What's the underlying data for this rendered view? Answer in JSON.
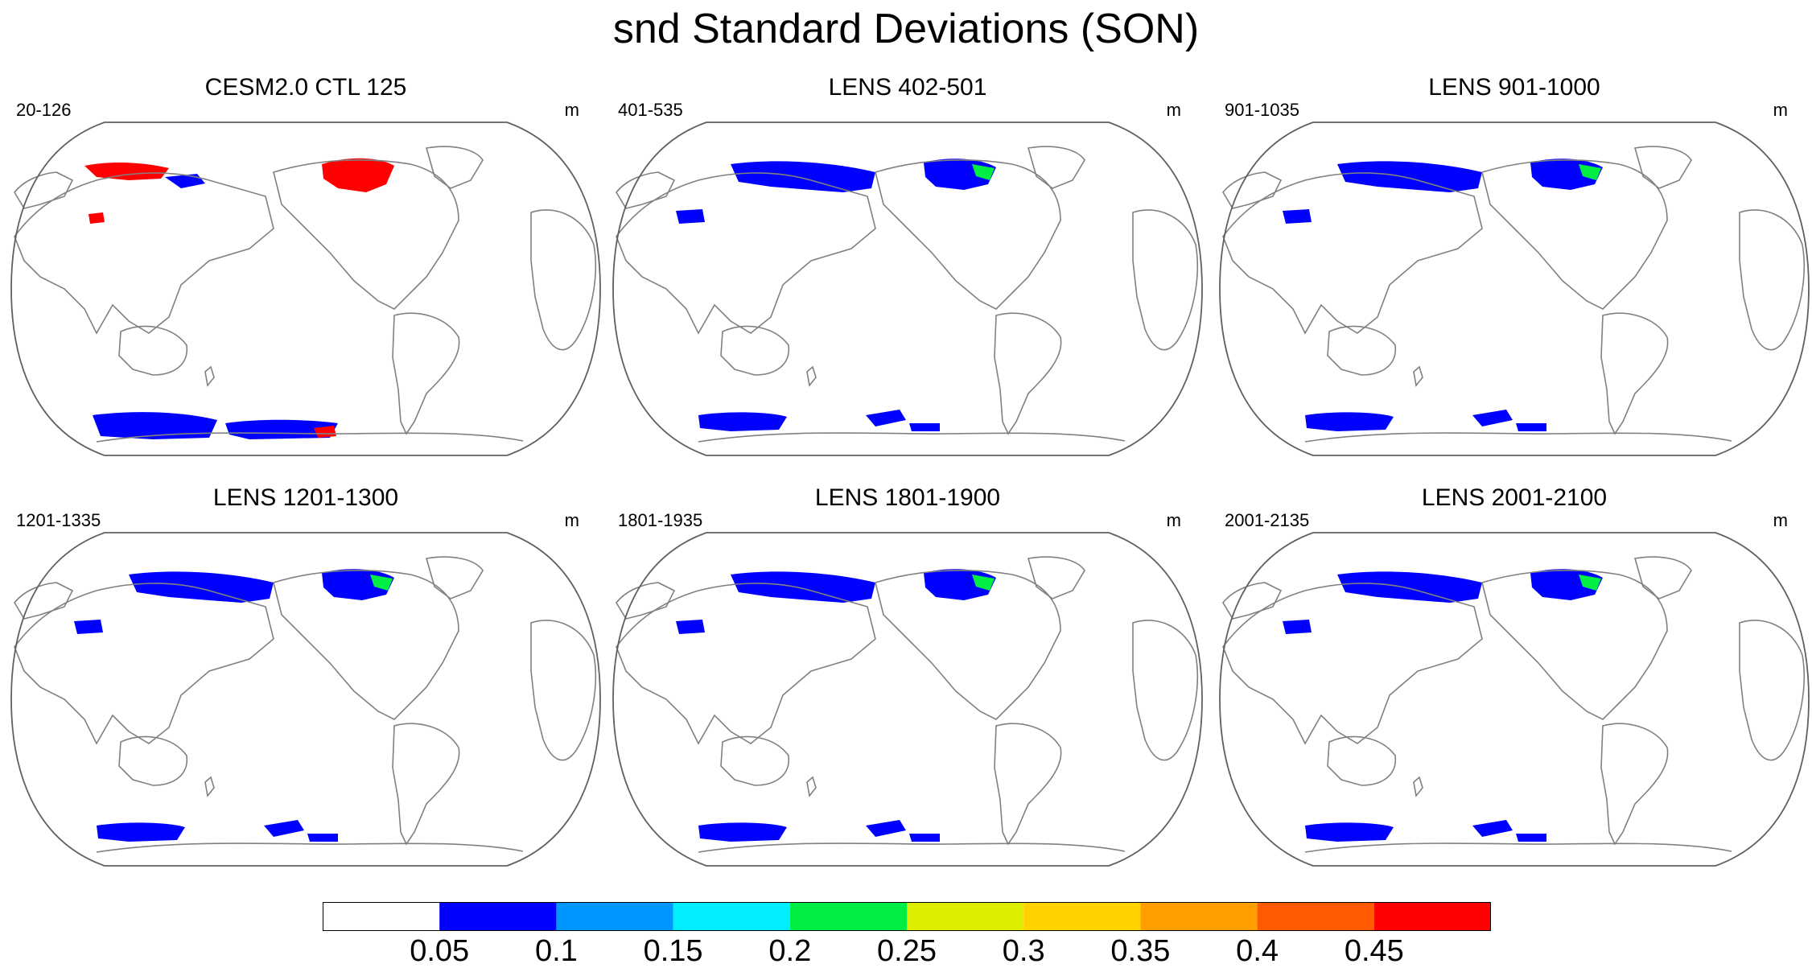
{
  "figure": {
    "title": "snd Standard Deviations (SON)"
  },
  "panels": [
    {
      "title": "CESM2.0 CTL 125",
      "range": "20-126",
      "units": "m",
      "style": "ctl"
    },
    {
      "title": "LENS 402-501",
      "range": "401-535",
      "units": "m",
      "style": "lens"
    },
    {
      "title": "LENS 901-1000",
      "range": "901-1035",
      "units": "m",
      "style": "lens"
    },
    {
      "title": "LENS 1201-1300",
      "range": "1201-1335",
      "units": "m",
      "style": "lens"
    },
    {
      "title": "LENS 1801-1900",
      "range": "1801-1935",
      "units": "m",
      "style": "lens"
    },
    {
      "title": "LENS 2001-2100",
      "range": "2001-2135",
      "units": "m",
      "style": "lens"
    }
  ],
  "colorbar": {
    "labels": [
      "0.05",
      "0.1",
      "0.15",
      "0.2",
      "0.25",
      "0.3",
      "0.35",
      "0.4",
      "0.45"
    ],
    "colors": [
      "#ffffff",
      "#0000ff",
      "#0096ff",
      "#00eeff",
      "#00ee44",
      "#ddee00",
      "#ffd200",
      "#ff9e00",
      "#ff5a00",
      "#ff0000"
    ]
  },
  "colors": {
    "coastline": "#808080",
    "outline": "#606060"
  }
}
